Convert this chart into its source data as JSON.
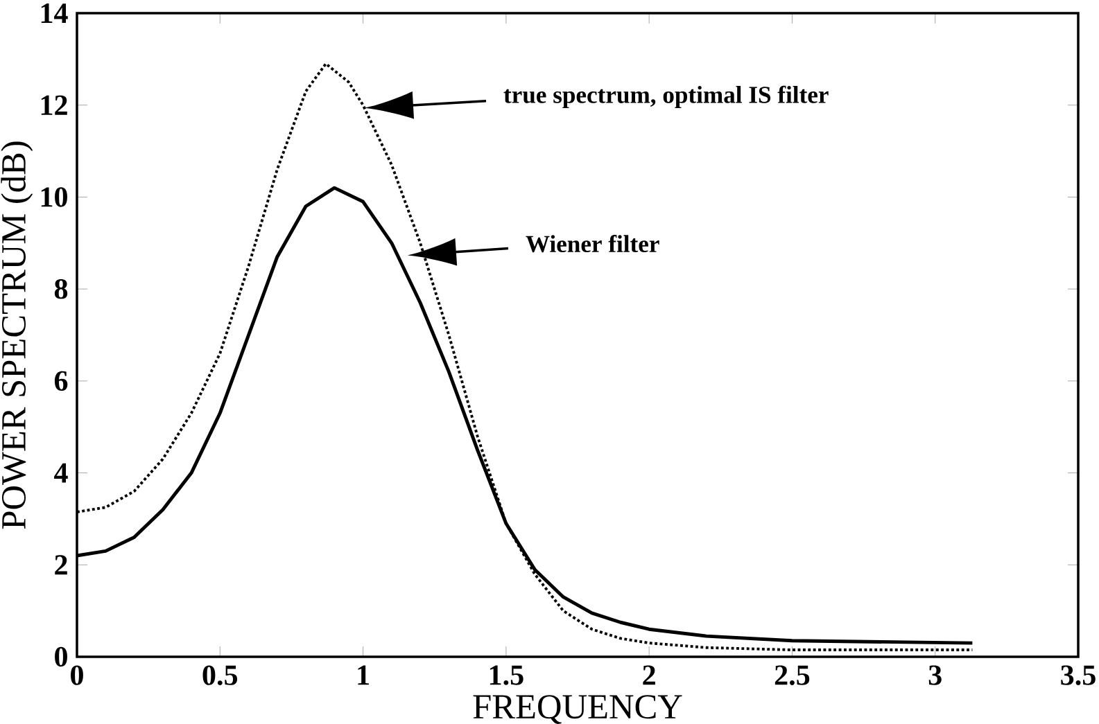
{
  "chart_data": {
    "type": "line",
    "xlabel": "FREQUENCY",
    "ylabel": "POWER SPECTRUM (dB)",
    "xlim": [
      0,
      3.5
    ],
    "ylim": [
      0,
      14
    ],
    "xticks": [
      0,
      0.5,
      1,
      1.5,
      2,
      2.5,
      3,
      3.5
    ],
    "yticks": [
      0,
      2,
      4,
      6,
      8,
      10,
      12,
      14
    ],
    "grid": false,
    "marker": "none",
    "series": [
      {
        "color": "#000000",
        "line_style": "dotted",
        "x": [
          0,
          0.1,
          0.2,
          0.3,
          0.4,
          0.5,
          0.6,
          0.7,
          0.8,
          0.87,
          0.95,
          1.0,
          1.1,
          1.2,
          1.3,
          1.4,
          1.5,
          1.6,
          1.7,
          1.8,
          1.9,
          2.0,
          2.2,
          2.5,
          3.13
        ],
        "values": [
          3.15,
          3.25,
          3.6,
          4.3,
          5.3,
          6.6,
          8.5,
          10.6,
          12.3,
          12.9,
          12.5,
          12.0,
          10.7,
          9.0,
          7.0,
          4.8,
          2.9,
          1.8,
          1.0,
          0.6,
          0.4,
          0.3,
          0.2,
          0.15,
          0.15
        ]
      },
      {
        "color": "#000000",
        "line_style": "solid",
        "x": [
          0,
          0.1,
          0.2,
          0.3,
          0.4,
          0.5,
          0.6,
          0.7,
          0.8,
          0.9,
          1.0,
          1.1,
          1.2,
          1.3,
          1.4,
          1.5,
          1.6,
          1.7,
          1.8,
          1.9,
          2.0,
          2.2,
          2.5,
          3.13
        ],
        "values": [
          2.2,
          2.3,
          2.6,
          3.2,
          4.0,
          5.3,
          7.0,
          8.7,
          9.8,
          10.2,
          9.9,
          9.0,
          7.7,
          6.2,
          4.5,
          2.9,
          1.9,
          1.3,
          0.95,
          0.75,
          0.6,
          0.45,
          0.35,
          0.3
        ]
      }
    ],
    "annotations": [
      "true spectrum,  optimal IS filter",
      "Wiener filter"
    ]
  }
}
